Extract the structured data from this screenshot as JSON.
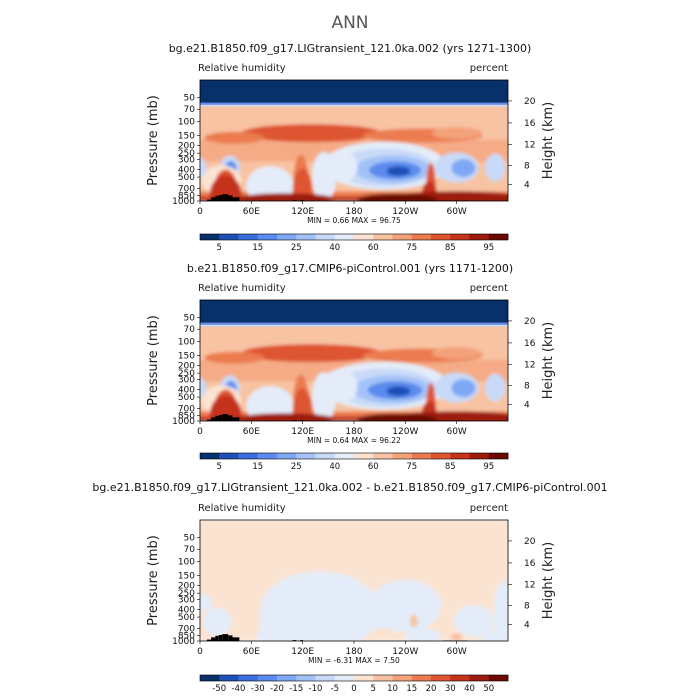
{
  "figure": {
    "title": "ANN",
    "colors": {
      "rh_levels": [
        "#08306b",
        "#1e50b8",
        "#3a6fdc",
        "#5b8bee",
        "#7fa8f4",
        "#a3c2f7",
        "#c8daf8",
        "#e3ecf8",
        "#fbe3d2",
        "#f8c3a2",
        "#f3a27a",
        "#ec7b50",
        "#de5430",
        "#c4331b",
        "#9c1b0c",
        "#6b0a02"
      ],
      "diff_levels": [
        "#08306b",
        "#1e50b8",
        "#3a6fdc",
        "#5b8bee",
        "#7fa8f4",
        "#a3c2f7",
        "#c8daf8",
        "#e3ecf8",
        "#fbe3d2",
        "#f8c3a2",
        "#f3a27a",
        "#ec7b50",
        "#de5430",
        "#c4331b",
        "#9c1b0c",
        "#6b0a02"
      ],
      "topography": "#000000"
    }
  },
  "chart_data": [
    {
      "type": "heatmap",
      "title": "bg.e21.B1850.f09_g17.LIGtransient_121.0ka.002 (yrs 1271-1300)",
      "left_label": "Relative humidity",
      "right_label": "percent",
      "xlabel": "",
      "ylabel": "Pressure (mb)",
      "y2label": "Height (km)",
      "xticks": [
        "0",
        "60E",
        "120E",
        "180",
        "120W",
        "60W"
      ],
      "xtick_lon": [
        0,
        60,
        120,
        180,
        240,
        300
      ],
      "xlim": [
        0,
        360
      ],
      "yticks": [
        "50",
        "70",
        "100",
        "150",
        "200",
        "250",
        "300",
        "400",
        "500",
        "700",
        "850",
        "1000"
      ],
      "ytick_values": [
        50,
        70,
        100,
        150,
        200,
        250,
        300,
        400,
        500,
        700,
        850,
        1000
      ],
      "ylim": [
        30,
        1000
      ],
      "yscale": "log",
      "y2ticks": [
        "20",
        "16",
        "12",
        "8",
        "4"
      ],
      "y2tick_pressure": [
        55,
        104,
        194,
        356,
        617
      ],
      "min_max": "MIN =     0.66   MAX =   96.75",
      "colorbar": {
        "levels": [
          "5",
          "15",
          "25",
          "40",
          "60",
          "75",
          "85",
          "95"
        ],
        "level_colors": [
          "#1e50b8",
          "#5b8bee",
          "#a3c2f7",
          "#e3ecf8",
          "#f8c3a2",
          "#ec7b50",
          "#c4331b",
          "#6b0a02"
        ]
      }
    },
    {
      "type": "heatmap",
      "title": "b.e21.B1850.f09_g17.CMIP6-piControl.001 (yrs 1171-1200)",
      "left_label": "Relative humidity",
      "right_label": "percent",
      "xlabel": "",
      "ylabel": "Pressure (mb)",
      "y2label": "Height (km)",
      "xticks": [
        "0",
        "60E",
        "120E",
        "180",
        "120W",
        "60W"
      ],
      "xtick_lon": [
        0,
        60,
        120,
        180,
        240,
        300
      ],
      "xlim": [
        0,
        360
      ],
      "yticks": [
        "50",
        "70",
        "100",
        "150",
        "200",
        "250",
        "300",
        "400",
        "500",
        "700",
        "850",
        "1000"
      ],
      "ytick_values": [
        50,
        70,
        100,
        150,
        200,
        250,
        300,
        400,
        500,
        700,
        850,
        1000
      ],
      "ylim": [
        30,
        1000
      ],
      "yscale": "log",
      "y2ticks": [
        "20",
        "16",
        "12",
        "8",
        "4"
      ],
      "y2tick_pressure": [
        55,
        104,
        194,
        356,
        617
      ],
      "min_max": "MIN =     0.64   MAX =   96.22",
      "colorbar": {
        "levels": [
          "5",
          "15",
          "25",
          "40",
          "60",
          "75",
          "85",
          "95"
        ],
        "level_colors": [
          "#1e50b8",
          "#5b8bee",
          "#a3c2f7",
          "#e3ecf8",
          "#f8c3a2",
          "#ec7b50",
          "#c4331b",
          "#6b0a02"
        ]
      }
    },
    {
      "type": "heatmap",
      "title": "bg.e21.B1850.f09_g17.LIGtransient_121.0ka.002 - b.e21.B1850.f09_g17.CMIP6-piControl.001",
      "left_label": "Relative humidity",
      "right_label": "percent",
      "xlabel": "",
      "ylabel": "Pressure (mb)",
      "y2label": "Height (km)",
      "xticks": [
        "0",
        "60E",
        "120E",
        "180",
        "120W",
        "60W"
      ],
      "xtick_lon": [
        0,
        60,
        120,
        180,
        240,
        300
      ],
      "xlim": [
        0,
        360
      ],
      "yticks": [
        "50",
        "70",
        "100",
        "150",
        "200",
        "250",
        "300",
        "400",
        "500",
        "700",
        "850",
        "1000"
      ],
      "ytick_values": [
        50,
        70,
        100,
        150,
        200,
        250,
        300,
        400,
        500,
        700,
        850,
        1000
      ],
      "ylim": [
        30,
        1000
      ],
      "yscale": "log",
      "y2ticks": [
        "20",
        "16",
        "12",
        "8",
        "4"
      ],
      "y2tick_pressure": [
        55,
        104,
        194,
        356,
        617
      ],
      "min_max": "MIN =    -6.31   MAX =     7.50",
      "colorbar": {
        "levels": [
          "-50",
          "-40",
          "-30",
          "-20",
          "-15",
          "-10",
          "-5",
          "0",
          "5",
          "10",
          "15",
          "20",
          "30",
          "40",
          "50"
        ],
        "level_colors": [
          "#08306b",
          "#1e50b8",
          "#3a6fdc",
          "#5b8bee",
          "#7fa8f4",
          "#a3c2f7",
          "#c8daf8",
          "#e3ecf8",
          "#fbe3d2",
          "#f8c3a2",
          "#f3a27a",
          "#ec7b50",
          "#de5430",
          "#c4331b",
          "#9c1b0c",
          "#6b0a02"
        ]
      }
    }
  ]
}
